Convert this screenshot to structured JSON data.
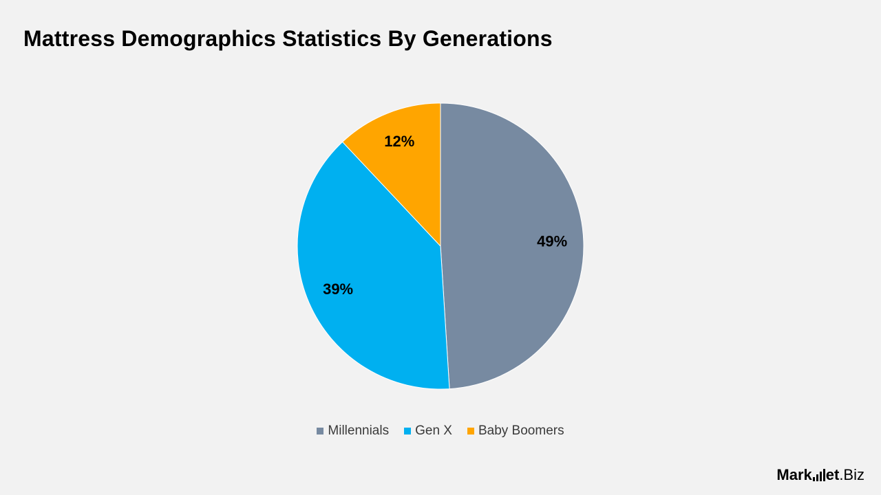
{
  "chart_data": {
    "type": "pie",
    "title": "Mattress Demographics Statistics By Generations",
    "categories": [
      "Millennials",
      "Gen X",
      "Baby Boomers"
    ],
    "values": [
      49,
      39,
      12
    ],
    "labels": [
      "49%",
      "39%",
      "12%"
    ],
    "colors": [
      "#778aa1",
      "#00b0f0",
      "#ffa500"
    ],
    "legend_position": "bottom"
  },
  "branding": {
    "logo_left": "Mark",
    "logo_right": "et",
    "logo_suffix": ".Biz"
  }
}
